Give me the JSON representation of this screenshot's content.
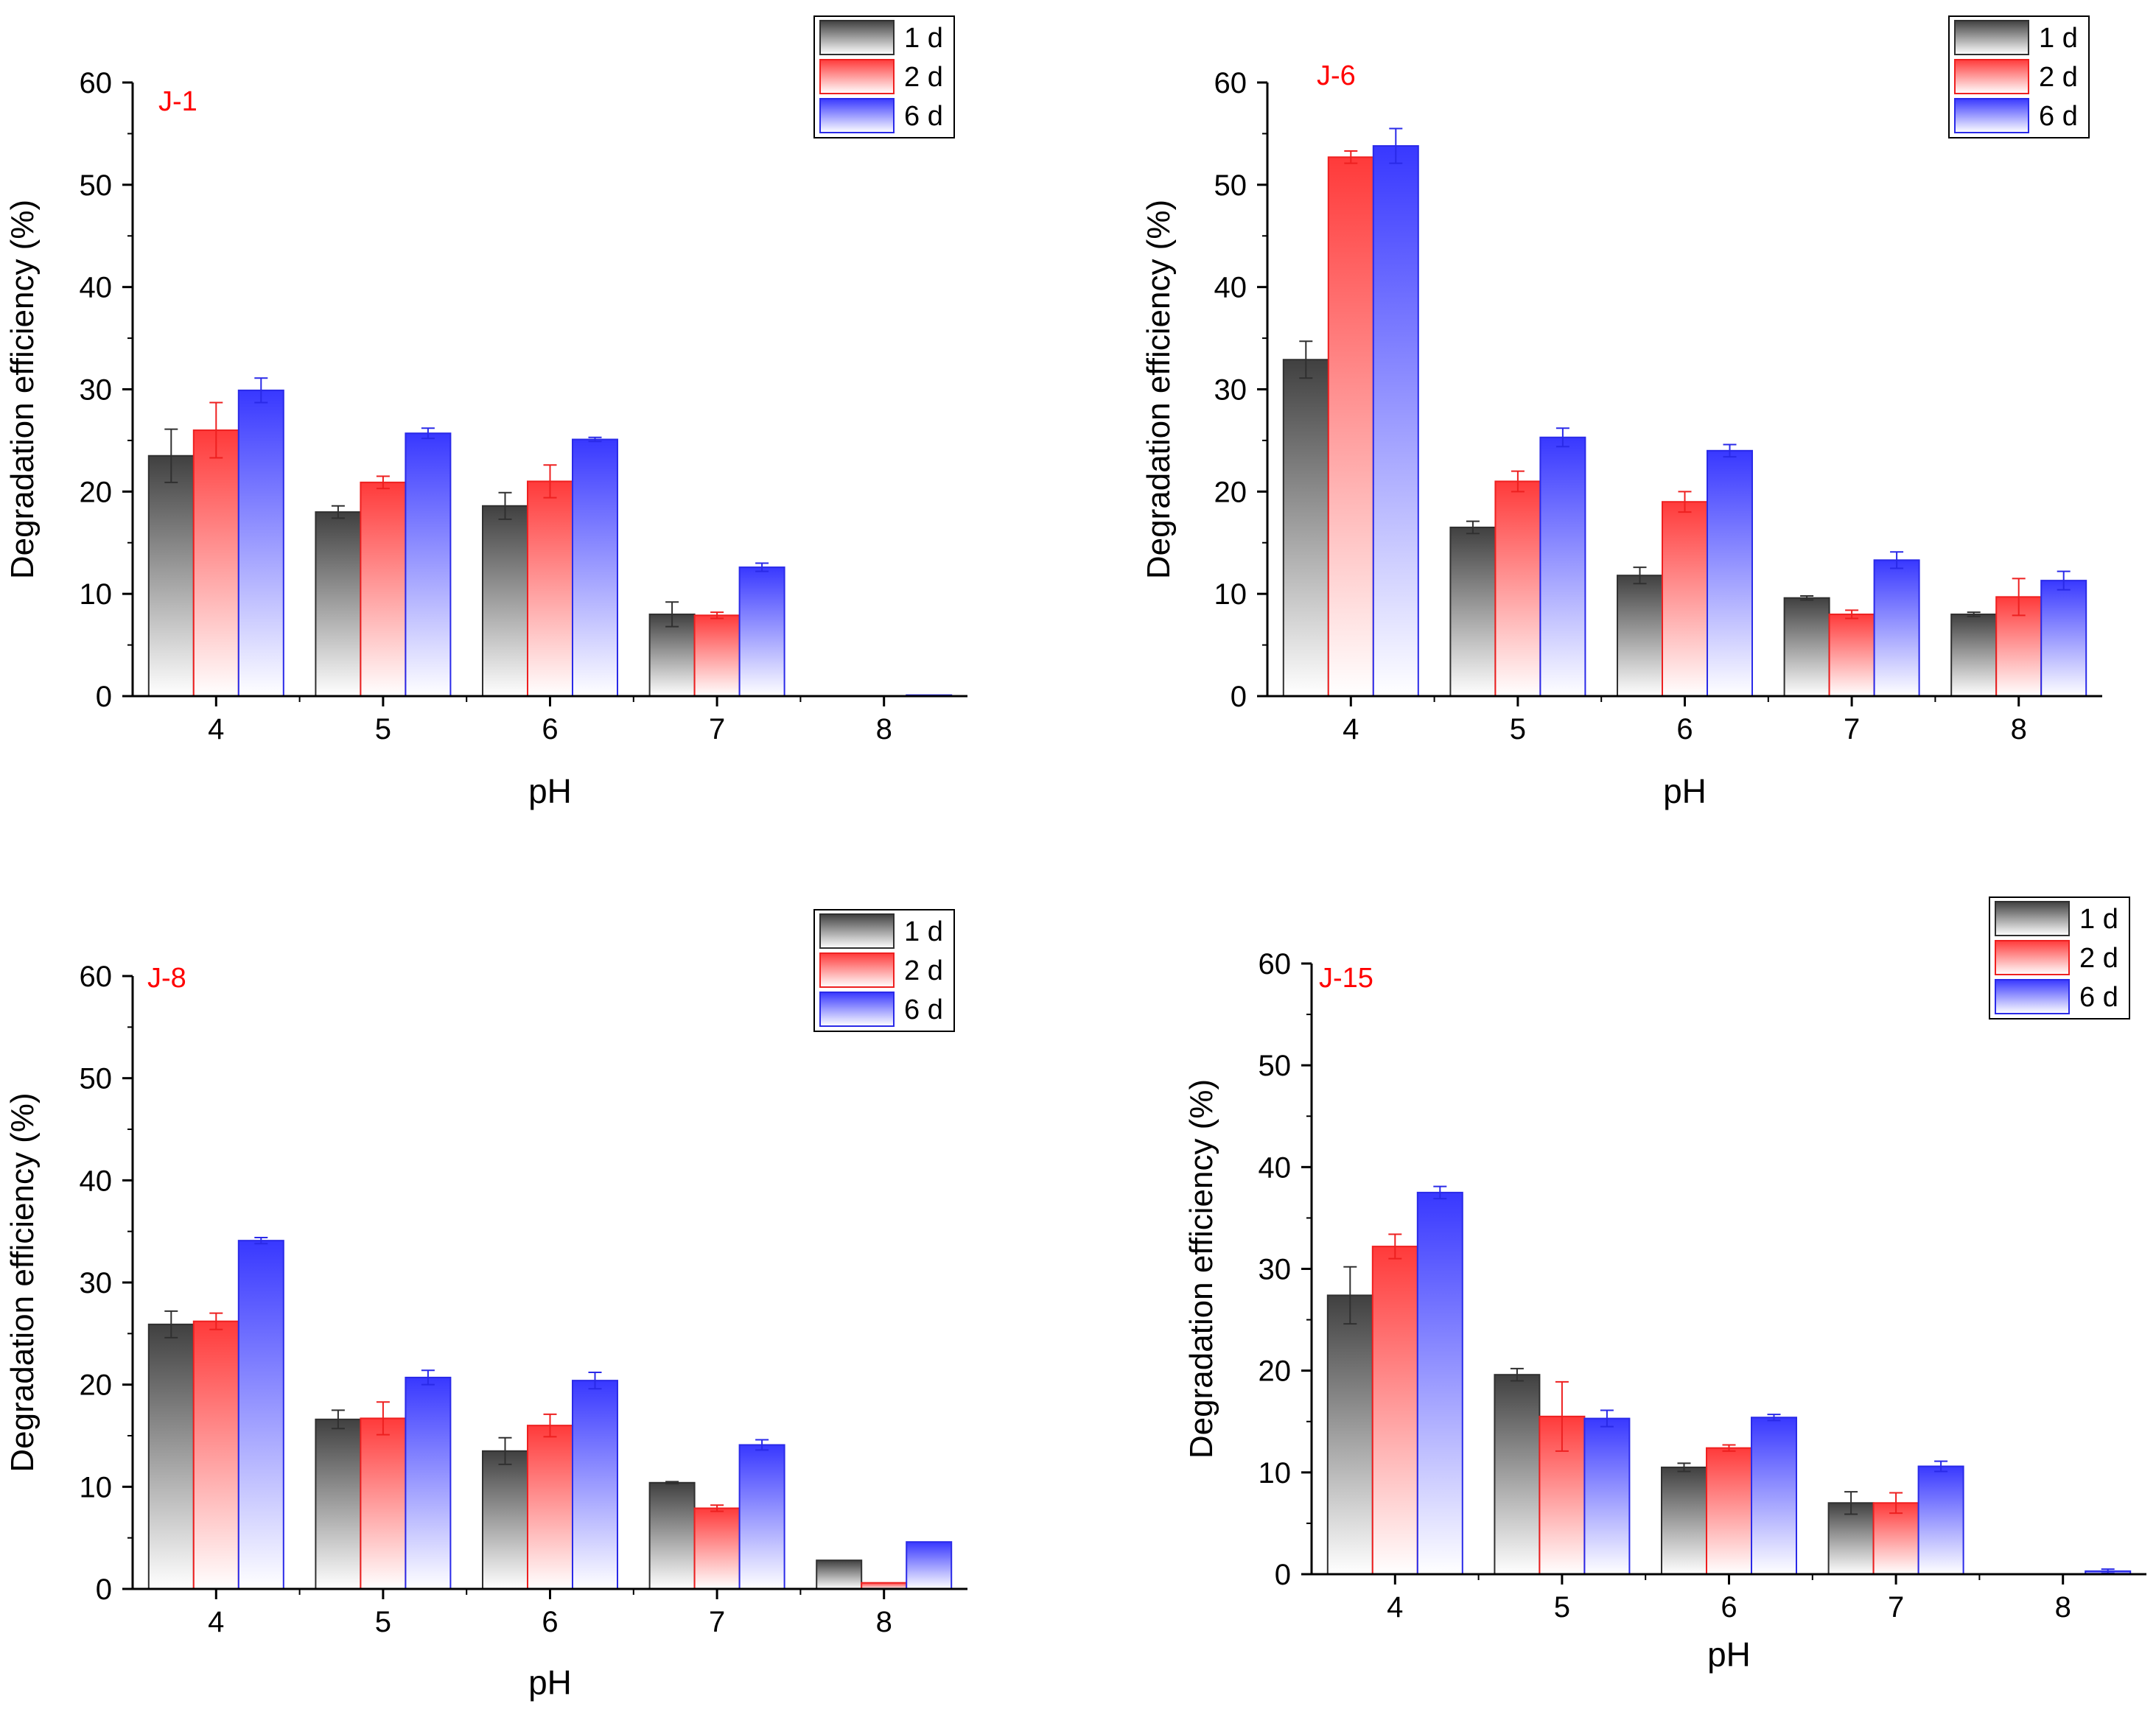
{
  "chart_data": [
    {
      "type": "bar",
      "title": "J-1",
      "categories": [
        "4",
        "5",
        "6",
        "7",
        "8"
      ],
      "xlabel": "pH",
      "ylabel": "Degradation efficiency (%)",
      "ylim": [
        0,
        60
      ],
      "yticks": [
        0,
        10,
        20,
        30,
        40,
        50,
        60
      ],
      "legend_position": "top-right",
      "series": [
        {
          "name": "1 d",
          "values": [
            23.5,
            18.0,
            18.6,
            8.0,
            0
          ],
          "errors": [
            2.6,
            0.6,
            1.3,
            1.2,
            0
          ]
        },
        {
          "name": "2 d",
          "values": [
            26.0,
            20.9,
            21.0,
            7.9,
            0
          ],
          "errors": [
            2.7,
            0.6,
            1.6,
            0.3,
            0
          ]
        },
        {
          "name": "6 d",
          "values": [
            29.9,
            25.7,
            25.1,
            12.6,
            0.1
          ],
          "errors": [
            1.2,
            0.5,
            0.2,
            0.4,
            0
          ]
        }
      ]
    },
    {
      "type": "bar",
      "title": "J-6",
      "categories": [
        "4",
        "5",
        "6",
        "7",
        "8"
      ],
      "xlabel": "pH",
      "ylabel": "Degradation efficiency (%)",
      "ylim": [
        0,
        60
      ],
      "yticks": [
        0,
        10,
        20,
        30,
        40,
        50,
        60
      ],
      "legend_position": "top-right",
      "series": [
        {
          "name": "1 d",
          "values": [
            32.9,
            16.5,
            11.8,
            9.6,
            8.0
          ],
          "errors": [
            1.8,
            0.6,
            0.8,
            0.2,
            0.2
          ]
        },
        {
          "name": "2 d",
          "values": [
            52.7,
            21.0,
            19.0,
            8.0,
            9.7
          ],
          "errors": [
            0.6,
            1.0,
            1.0,
            0.4,
            1.8
          ]
        },
        {
          "name": "6 d",
          "values": [
            53.8,
            25.3,
            24.0,
            13.3,
            11.3
          ],
          "errors": [
            1.7,
            0.9,
            0.6,
            0.8,
            0.9
          ]
        }
      ]
    },
    {
      "type": "bar",
      "title": "J-8",
      "categories": [
        "4",
        "5",
        "6",
        "7",
        "8"
      ],
      "xlabel": "pH",
      "ylabel": "Degradation efficiency (%)",
      "ylim": [
        0,
        60
      ],
      "yticks": [
        0,
        10,
        20,
        30,
        40,
        50,
        60
      ],
      "legend_position": "top-right",
      "series": [
        {
          "name": "1 d",
          "values": [
            25.9,
            16.6,
            13.5,
            10.4,
            2.8
          ],
          "errors": [
            1.3,
            0.9,
            1.3,
            0.1,
            0
          ]
        },
        {
          "name": "2 d",
          "values": [
            26.2,
            16.7,
            16.0,
            7.9,
            0.6
          ],
          "errors": [
            0.8,
            1.6,
            1.1,
            0.3,
            0
          ]
        },
        {
          "name": "6 d",
          "values": [
            34.1,
            20.7,
            20.4,
            14.1,
            4.6
          ],
          "errors": [
            0.3,
            0.7,
            0.8,
            0.5,
            0
          ]
        }
      ]
    },
    {
      "type": "bar",
      "title": "J-15",
      "categories": [
        "4",
        "5",
        "6",
        "7",
        "8"
      ],
      "xlabel": "pH",
      "ylabel": "Degradation efficiency (%)",
      "ylim": [
        0,
        60
      ],
      "yticks": [
        0,
        10,
        20,
        30,
        40,
        50,
        60
      ],
      "legend_position": "top-right",
      "series": [
        {
          "name": "1 d",
          "values": [
            27.4,
            19.6,
            10.5,
            7.0,
            0
          ],
          "errors": [
            2.8,
            0.6,
            0.4,
            1.1,
            0
          ]
        },
        {
          "name": "2 d",
          "values": [
            32.2,
            15.5,
            12.4,
            7.0,
            0
          ],
          "errors": [
            1.2,
            3.4,
            0.3,
            1.0,
            0
          ]
        },
        {
          "name": "6 d",
          "values": [
            37.5,
            15.3,
            15.4,
            10.6,
            0.3
          ],
          "errors": [
            0.6,
            0.8,
            0.3,
            0.5,
            0.2
          ]
        }
      ]
    }
  ],
  "colors": {
    "series_dark": [
      "#404040",
      "#ff2a2a",
      "#3030ff"
    ],
    "series_stroke": [
      "#303030",
      "#ee2020",
      "#2a2ae8"
    ],
    "panel_title": "#ff0000",
    "axis": "#000000"
  }
}
